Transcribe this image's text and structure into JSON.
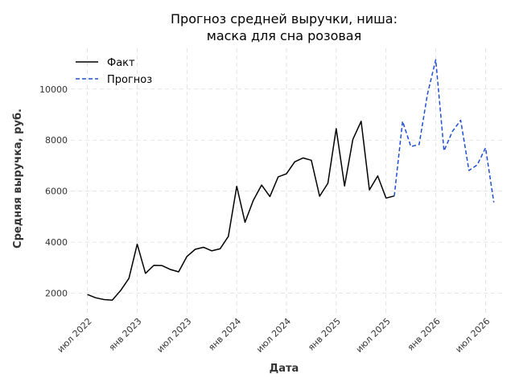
{
  "chart_data": {
    "type": "line",
    "title_lines": [
      "Прогноз средней выручки, ниша:",
      "маска для сна розовая"
    ],
    "xlabel": "Дата",
    "ylabel": "Средняя выручка, руб.",
    "ylim": [
      1200,
      11600
    ],
    "yticks": [
      2000,
      4000,
      6000,
      8000,
      10000
    ],
    "xlim": [
      "2022-05",
      "2026-09"
    ],
    "xticks": [
      {
        "date": "2022-07",
        "label": "июл 2022"
      },
      {
        "date": "2023-01",
        "label": "янв 2023"
      },
      {
        "date": "2023-07",
        "label": "июл 2023"
      },
      {
        "date": "2024-01",
        "label": "янв 2024"
      },
      {
        "date": "2024-07",
        "label": "июл 2024"
      },
      {
        "date": "2025-01",
        "label": "янв 2025"
      },
      {
        "date": "2025-07",
        "label": "июл 2025"
      },
      {
        "date": "2026-01",
        "label": "янв 2026"
      },
      {
        "date": "2026-07",
        "label": "июл 2026"
      }
    ],
    "grid": true,
    "legend_position": "top-left",
    "series": [
      {
        "name": "Факт",
        "color": "#000000",
        "style": "solid",
        "x": [
          "2022-07",
          "2022-08",
          "2022-09",
          "2022-10",
          "2022-11",
          "2022-12",
          "2023-01",
          "2023-02",
          "2023-03",
          "2023-04",
          "2023-05",
          "2023-06",
          "2023-07",
          "2023-08",
          "2023-09",
          "2023-10",
          "2023-11",
          "2023-12",
          "2024-01",
          "2024-02",
          "2024-03",
          "2024-04",
          "2024-05",
          "2024-06",
          "2024-07",
          "2024-08",
          "2024-09",
          "2024-10",
          "2024-11",
          "2024-12",
          "2025-01",
          "2025-02",
          "2025-03",
          "2025-04",
          "2025-05",
          "2025-06",
          "2025-07",
          "2025-08"
        ],
        "values": [
          1950,
          1820,
          1750,
          1730,
          2100,
          2580,
          3920,
          2780,
          3090,
          3080,
          2930,
          2840,
          3440,
          3720,
          3800,
          3660,
          3740,
          4230,
          6190,
          4780,
          5640,
          6240,
          5790,
          6560,
          6680,
          7150,
          7300,
          7210,
          5800,
          6310,
          8450,
          6200,
          8030,
          8740,
          6050,
          6600,
          5730,
          5810
        ]
      },
      {
        "name": "Прогноз",
        "color": "#1f4fd1",
        "style": "dashed",
        "x": [
          "2025-08",
          "2025-09",
          "2025-10",
          "2025-11",
          "2025-12",
          "2026-01",
          "2026-02",
          "2026-03",
          "2026-04",
          "2026-05",
          "2026-06",
          "2026-07",
          "2026-08"
        ],
        "values": [
          5810,
          8740,
          7750,
          7830,
          9800,
          11150,
          7580,
          8340,
          8780,
          6810,
          7030,
          7700,
          5560
        ]
      }
    ]
  }
}
